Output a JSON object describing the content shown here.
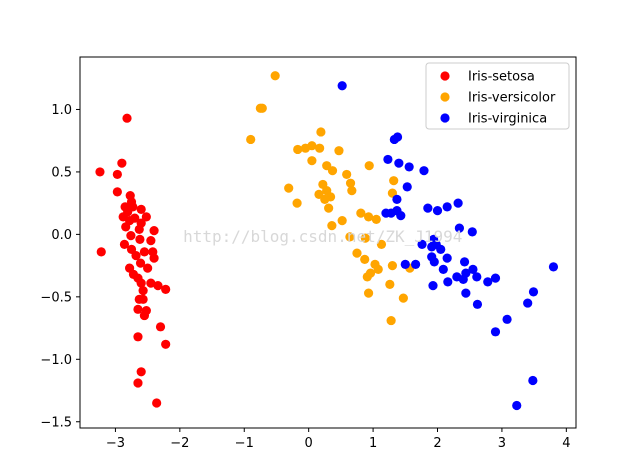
{
  "chart_data": {
    "type": "scatter",
    "xlim": [
      -3.55,
      4.15
    ],
    "ylim": [
      -1.55,
      1.42
    ],
    "xticks": [
      -3,
      -2,
      -1,
      0,
      1,
      2,
      3,
      4
    ],
    "yticks": [
      -1.5,
      -1.0,
      -0.5,
      0.0,
      0.5,
      1.0
    ],
    "xtick_labels": [
      "−3",
      "−2",
      "−1",
      "0",
      "1",
      "2",
      "3",
      "4"
    ],
    "ytick_labels": [
      "−1.5",
      "−1.0",
      "−0.5",
      "0.0",
      "0.5",
      "1.0"
    ],
    "grid": false,
    "legend_position": "top-right",
    "watermark": "http://blog.csdn.net/ZK_J1994",
    "series": [
      {
        "name": "Iris-setosa",
        "color": "#ff0000",
        "points": [
          [
            -2.82,
            0.93
          ],
          [
            -2.9,
            0.57
          ],
          [
            -3.24,
            0.5
          ],
          [
            -2.97,
            0.48
          ],
          [
            -2.97,
            0.34
          ],
          [
            -2.77,
            0.31
          ],
          [
            -2.75,
            0.26
          ],
          [
            -2.85,
            0.22
          ],
          [
            -2.73,
            0.22
          ],
          [
            -2.6,
            0.2
          ],
          [
            -2.81,
            0.18
          ],
          [
            -2.88,
            0.14
          ],
          [
            -2.7,
            0.13
          ],
          [
            -2.52,
            0.14
          ],
          [
            -2.78,
            0.11
          ],
          [
            -2.6,
            0.09
          ],
          [
            -2.84,
            0.06
          ],
          [
            -2.63,
            0.04
          ],
          [
            -2.4,
            0.03
          ],
          [
            -2.76,
            -0.01
          ],
          [
            -2.62,
            -0.04
          ],
          [
            -2.45,
            -0.05
          ],
          [
            -2.86,
            -0.08
          ],
          [
            -2.75,
            -0.12
          ],
          [
            -2.55,
            -0.14
          ],
          [
            -2.42,
            -0.14
          ],
          [
            -3.22,
            -0.14
          ],
          [
            -2.68,
            -0.17
          ],
          [
            -2.4,
            -0.19
          ],
          [
            -2.61,
            -0.23
          ],
          [
            -2.78,
            -0.27
          ],
          [
            -2.5,
            -0.27
          ],
          [
            -2.72,
            -0.32
          ],
          [
            -2.65,
            -0.35
          ],
          [
            -2.6,
            -0.39
          ],
          [
            -2.45,
            -0.39
          ],
          [
            -2.34,
            -0.41
          ],
          [
            -2.22,
            -0.44
          ],
          [
            -2.57,
            -0.45
          ],
          [
            -2.63,
            -0.52
          ],
          [
            -2.57,
            -0.52
          ],
          [
            -2.65,
            -0.6
          ],
          [
            -2.52,
            -0.61
          ],
          [
            -2.55,
            -0.65
          ],
          [
            -2.3,
            -0.74
          ],
          [
            -2.65,
            -0.82
          ],
          [
            -2.22,
            -0.88
          ],
          [
            -2.6,
            -1.1
          ],
          [
            -2.65,
            -1.19
          ],
          [
            -2.36,
            -1.35
          ]
        ]
      },
      {
        "name": "Iris-versicolor",
        "color": "#ffa500",
        "points": [
          [
            -0.52,
            1.27
          ],
          [
            -0.75,
            1.01
          ],
          [
            -0.72,
            1.01
          ],
          [
            -0.9,
            0.76
          ],
          [
            0.19,
            0.82
          ],
          [
            0.05,
            0.71
          ],
          [
            -0.05,
            0.69
          ],
          [
            -0.17,
            0.68
          ],
          [
            0.17,
            0.69
          ],
          [
            0.47,
            0.67
          ],
          [
            0.05,
            0.59
          ],
          [
            0.28,
            0.55
          ],
          [
            0.94,
            0.55
          ],
          [
            0.37,
            0.51
          ],
          [
            0.59,
            0.48
          ],
          [
            0.65,
            0.41
          ],
          [
            0.22,
            0.4
          ],
          [
            1.32,
            0.43
          ],
          [
            -0.31,
            0.37
          ],
          [
            0.28,
            0.35
          ],
          [
            0.67,
            0.35
          ],
          [
            1.3,
            0.33
          ],
          [
            0.16,
            0.32
          ],
          [
            0.34,
            0.3
          ],
          [
            0.25,
            0.28
          ],
          [
            -0.18,
            0.25
          ],
          [
            0.31,
            0.21
          ],
          [
            0.81,
            0.17
          ],
          [
            0.93,
            0.14
          ],
          [
            1.05,
            0.12
          ],
          [
            0.52,
            0.11
          ],
          [
            0.36,
            0.07
          ],
          [
            0.64,
            -0.02
          ],
          [
            0.88,
            -0.03
          ],
          [
            1.13,
            -0.08
          ],
          [
            0.75,
            -0.15
          ],
          [
            0.87,
            -0.2
          ],
          [
            1.03,
            -0.24
          ],
          [
            1.08,
            -0.28
          ],
          [
            1.3,
            -0.25
          ],
          [
            1.57,
            -0.27
          ],
          [
            0.96,
            -0.31
          ],
          [
            0.91,
            -0.34
          ],
          [
            1.26,
            -0.4
          ],
          [
            0.93,
            -0.47
          ],
          [
            1.47,
            -0.51
          ],
          [
            1.28,
            -0.69
          ]
        ]
      },
      {
        "name": "Iris-virginica",
        "color": "#0000ff",
        "points": [
          [
            0.52,
            1.19
          ],
          [
            1.38,
            0.78
          ],
          [
            1.33,
            0.76
          ],
          [
            1.23,
            0.6
          ],
          [
            1.4,
            0.57
          ],
          [
            1.56,
            0.54
          ],
          [
            1.79,
            0.51
          ],
          [
            1.53,
            0.38
          ],
          [
            1.37,
            0.28
          ],
          [
            1.85,
            0.21
          ],
          [
            2.0,
            0.19
          ],
          [
            2.15,
            0.22
          ],
          [
            2.32,
            0.25
          ],
          [
            1.2,
            0.17
          ],
          [
            1.28,
            0.17
          ],
          [
            1.37,
            0.19
          ],
          [
            1.43,
            0.15
          ],
          [
            2.34,
            0.05
          ],
          [
            2.54,
            0.02
          ],
          [
            1.76,
            -0.08
          ],
          [
            1.94,
            -0.04
          ],
          [
            1.98,
            -0.08
          ],
          [
            1.91,
            -0.1
          ],
          [
            2.05,
            -0.12
          ],
          [
            2.15,
            -0.19
          ],
          [
            1.91,
            -0.18
          ],
          [
            1.5,
            -0.24
          ],
          [
            1.66,
            -0.24
          ],
          [
            1.95,
            -0.22
          ],
          [
            2.42,
            -0.22
          ],
          [
            2.09,
            -0.28
          ],
          [
            2.55,
            -0.28
          ],
          [
            2.3,
            -0.34
          ],
          [
            2.44,
            -0.31
          ],
          [
            2.4,
            -0.36
          ],
          [
            2.61,
            -0.34
          ],
          [
            2.78,
            -0.38
          ],
          [
            2.9,
            -0.35
          ],
          [
            3.8,
            -0.26
          ],
          [
            1.93,
            -0.41
          ],
          [
            2.16,
            -0.38
          ],
          [
            2.44,
            -0.47
          ],
          [
            3.49,
            -0.46
          ],
          [
            2.62,
            -0.56
          ],
          [
            3.4,
            -0.55
          ],
          [
            3.08,
            -0.68
          ],
          [
            2.9,
            -0.78
          ],
          [
            3.48,
            -1.17
          ],
          [
            3.23,
            -1.37
          ]
        ]
      }
    ]
  }
}
